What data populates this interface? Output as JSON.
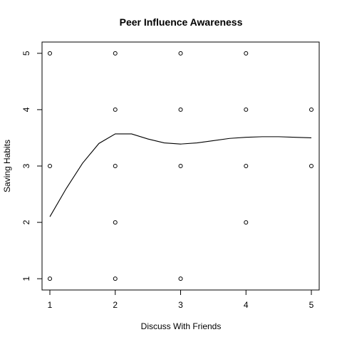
{
  "chart_data": {
    "type": "scatter",
    "title": "Peer Influence Awareness",
    "xlabel": "Discuss With Friends",
    "ylabel": "Saving Habits",
    "xlim": [
      0.88,
      5.12
    ],
    "ylim": [
      0.8,
      5.2
    ],
    "x_ticks": [
      1,
      2,
      3,
      4,
      5
    ],
    "y_ticks": [
      1,
      2,
      3,
      4,
      5
    ],
    "grid": false,
    "legend": "none",
    "points": [
      {
        "x": 1,
        "y": 5
      },
      {
        "x": 2,
        "y": 5
      },
      {
        "x": 3,
        "y": 5
      },
      {
        "x": 4,
        "y": 5
      },
      {
        "x": 2,
        "y": 4
      },
      {
        "x": 3,
        "y": 4
      },
      {
        "x": 4,
        "y": 4
      },
      {
        "x": 5,
        "y": 4
      },
      {
        "x": 1,
        "y": 3
      },
      {
        "x": 2,
        "y": 3
      },
      {
        "x": 3,
        "y": 3
      },
      {
        "x": 4,
        "y": 3
      },
      {
        "x": 5,
        "y": 3
      },
      {
        "x": 2,
        "y": 2
      },
      {
        "x": 4,
        "y": 2
      },
      {
        "x": 1,
        "y": 1
      },
      {
        "x": 2,
        "y": 1
      },
      {
        "x": 3,
        "y": 1
      }
    ],
    "smooth_line": {
      "x": [
        1,
        1.25,
        1.5,
        1.75,
        2,
        2.25,
        2.5,
        2.75,
        3,
        3.25,
        3.5,
        3.75,
        4,
        4.25,
        4.5,
        4.75,
        5
      ],
      "y": [
        2.1,
        2.6,
        3.05,
        3.4,
        3.57,
        3.57,
        3.48,
        3.41,
        3.39,
        3.41,
        3.45,
        3.49,
        3.51,
        3.52,
        3.52,
        3.51,
        3.5
      ]
    }
  }
}
